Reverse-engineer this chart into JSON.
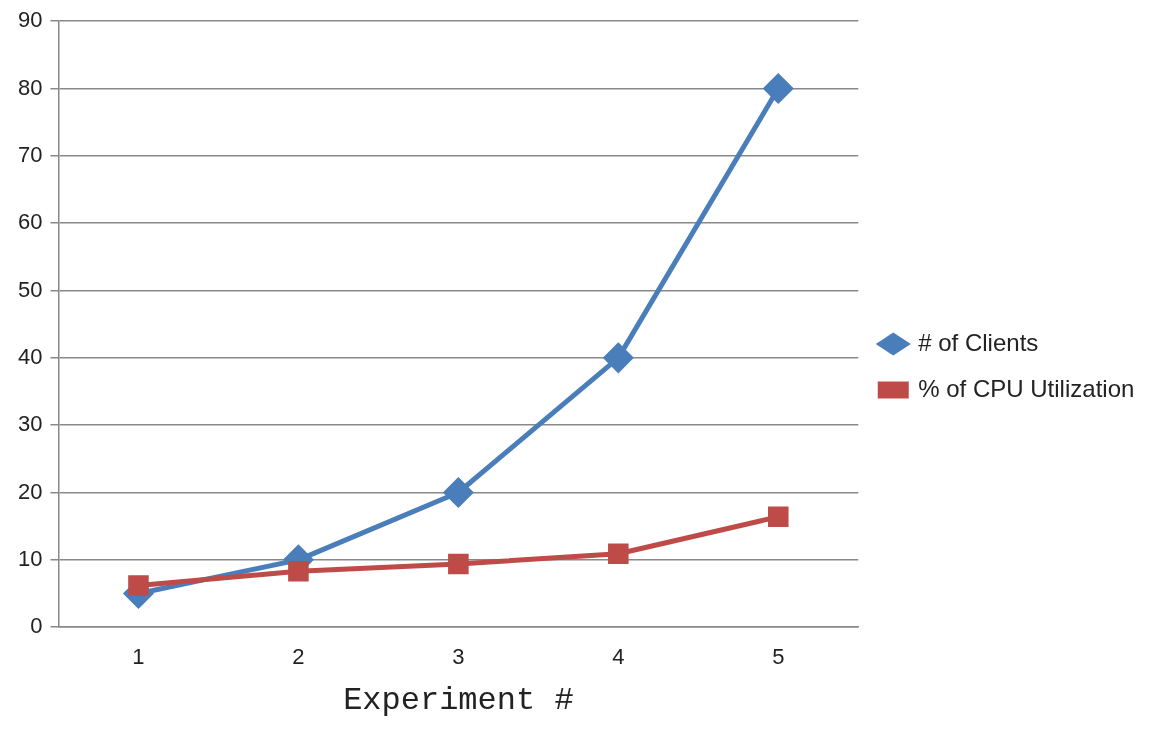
{
  "chart_data": {
    "type": "line",
    "xlabel": "Experiment #",
    "categories": [
      "1",
      "2",
      "3",
      "4",
      "5"
    ],
    "series": [
      {
        "name": "# of Clients",
        "color": "#4a7ebb",
        "marker": "diamond",
        "values": [
          5,
          10,
          20,
          40,
          80
        ]
      },
      {
        "name": "% of CPU Utilization",
        "color": "#be4b48",
        "marker": "square",
        "values": [
          6.2,
          8.3,
          9.4,
          10.9,
          16.4
        ]
      }
    ],
    "ylim": [
      0,
      90
    ],
    "yticks": [
      0,
      10,
      20,
      30,
      40,
      50,
      60,
      70,
      80,
      90
    ],
    "grid": "y",
    "legend": "right"
  }
}
